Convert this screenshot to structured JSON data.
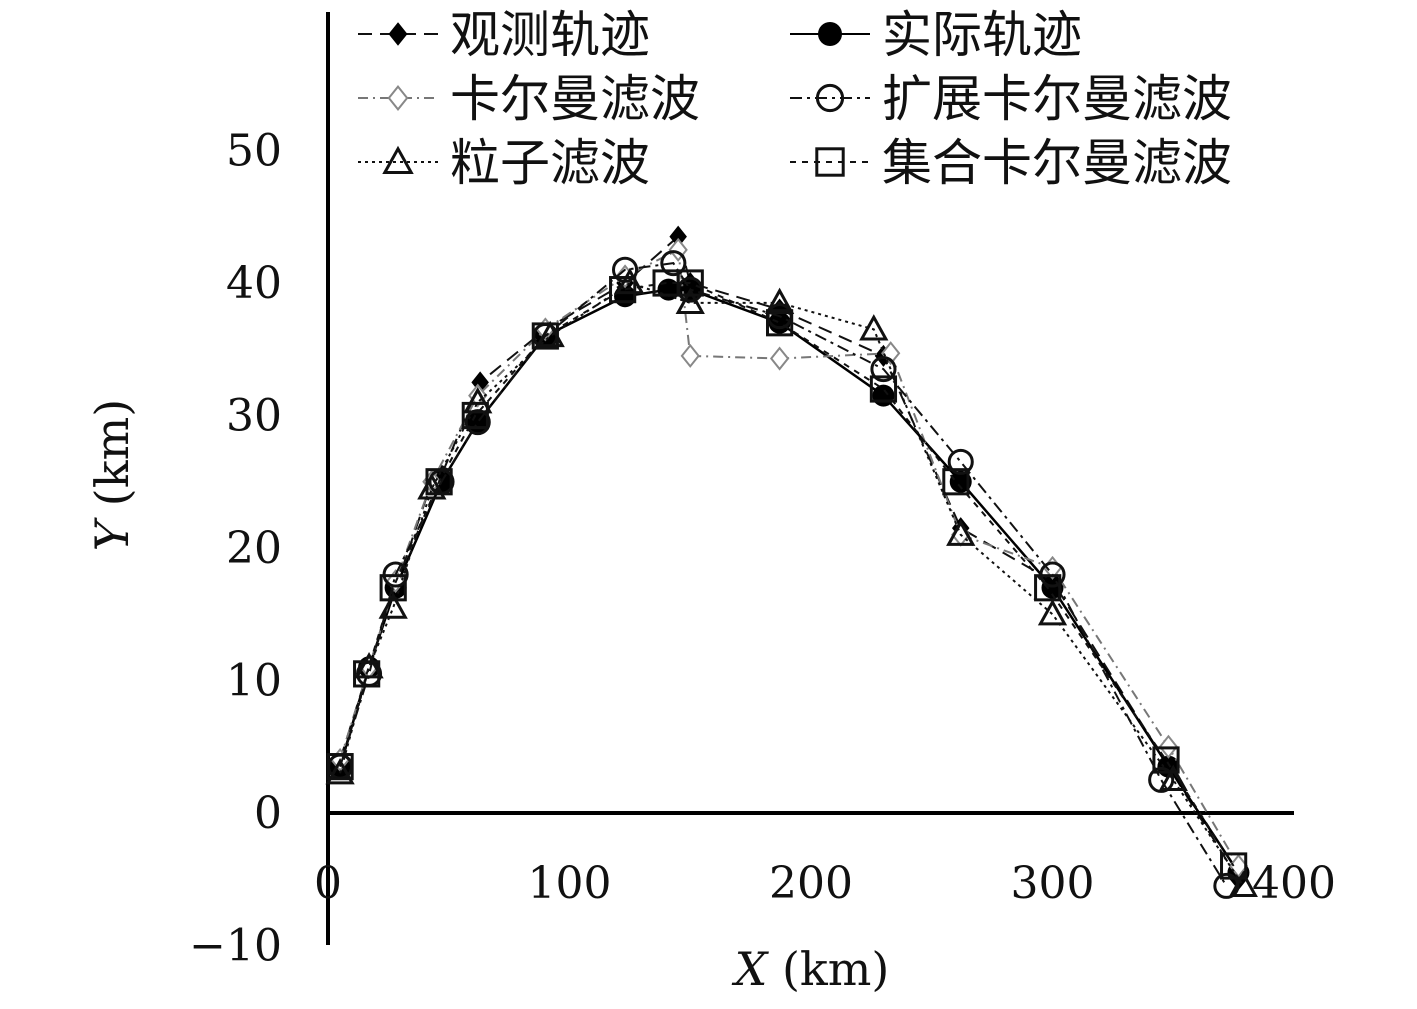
{
  "chart_data": {
    "type": "line",
    "title": "",
    "xlabel": "X",
    "xlabel_unit": "(km)",
    "ylabel": "Y",
    "ylabel_unit": "(km)",
    "xlim": [
      0,
      400
    ],
    "ylim": [
      -10,
      60
    ],
    "xticks": [
      0,
      100,
      200,
      300,
      400
    ],
    "yticks": [
      -10,
      0,
      10,
      20,
      30,
      40,
      50
    ],
    "grid": false,
    "legend_position": "top",
    "series": [
      {
        "name": "观测轨迹",
        "marker": "filled-diamond",
        "dash": "14 8",
        "color": "#111111",
        "x": [
          5,
          17,
          28,
          43,
          47,
          63,
          90,
          123,
          145,
          150,
          187,
          230,
          262,
          300,
          348,
          377
        ],
        "y": [
          4,
          11,
          17,
          25,
          25.5,
          32.5,
          36.5,
          40,
          43.5,
          40,
          38,
          34.5,
          21.5,
          17.5,
          3.5,
          -5
        ]
      },
      {
        "name": "实际轨迹",
        "marker": "filled-circle",
        "dash": "",
        "color": "#000000",
        "x": [
          5,
          17,
          28,
          47,
          62,
          90,
          123,
          141,
          150,
          187,
          230,
          262,
          300,
          348,
          377
        ],
        "y": [
          3.5,
          11,
          17,
          25,
          29.5,
          36,
          39,
          39.5,
          39.5,
          37,
          31.5,
          25,
          17,
          3.5,
          -4.5
        ]
      },
      {
        "name": "卡尔曼滤波",
        "marker": "open-diamond",
        "dash": "10 5 2 5",
        "color": "#777777",
        "x": [
          5,
          17,
          28,
          43,
          62,
          90,
          123,
          145,
          150,
          187,
          233,
          262,
          300,
          348,
          377
        ],
        "y": [
          4,
          11,
          17.5,
          25,
          31.5,
          36.5,
          40.5,
          42.5,
          34.5,
          34.3,
          34.7,
          21,
          18.5,
          5,
          -4
        ]
      },
      {
        "name": "扩展卡尔曼滤波",
        "marker": "open-circle",
        "dash": "12 5 3 5",
        "color": "#111111",
        "x": [
          5,
          17,
          28,
          47,
          62,
          90,
          123,
          143,
          150,
          187,
          230,
          262,
          300,
          345,
          372
        ],
        "y": [
          3.5,
          10.5,
          18,
          25,
          29.5,
          36,
          41,
          41.5,
          39.5,
          37.5,
          33.5,
          26.5,
          18,
          2.5,
          -5.5
        ]
      },
      {
        "name": "粒子滤波",
        "marker": "open-triangle",
        "dash": "3 4",
        "color": "#111111",
        "x": [
          5,
          17,
          27,
          43,
          62,
          92,
          125,
          150,
          187,
          226,
          262,
          300,
          350,
          379
        ],
        "y": [
          3,
          11,
          15.5,
          24.5,
          31,
          36,
          40,
          38.5,
          38.5,
          36.5,
          21,
          15,
          2.5,
          -5.5
        ]
      },
      {
        "name": "集合卡尔曼滤波",
        "marker": "open-square",
        "dash": "6 6",
        "color": "#111111",
        "x": [
          5,
          16,
          27,
          46,
          61,
          90,
          122,
          140,
          150,
          187,
          230,
          260,
          298,
          347,
          375
        ],
        "y": [
          3.5,
          10.5,
          17,
          25,
          30,
          36,
          39.5,
          40,
          40,
          37,
          32,
          25,
          17,
          4,
          -4
        ]
      }
    ]
  }
}
